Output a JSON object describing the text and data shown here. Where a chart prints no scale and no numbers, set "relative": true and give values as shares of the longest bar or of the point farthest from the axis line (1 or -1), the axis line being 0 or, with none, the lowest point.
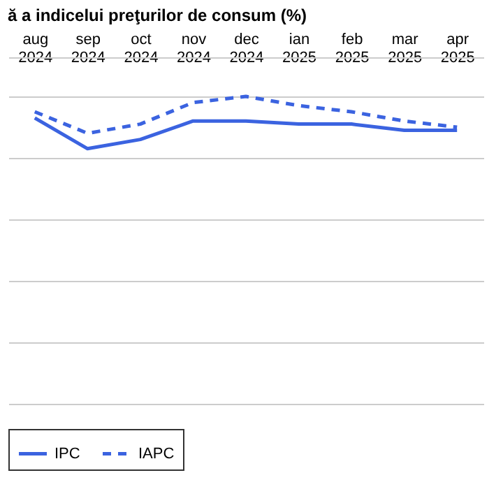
{
  "chart_data": {
    "type": "line",
    "title": "ă a indicelui preţurilor de consum (%)",
    "relative": true,
    "grid": "y",
    "legend": "bottom",
    "marker": "none",
    "categories": [
      "aug 2024",
      "sep 2024",
      "oct 2024",
      "nov 2024",
      "dec 2024",
      "ian 2025",
      "feb 2025",
      "mar 2025",
      "apr 2025"
    ],
    "series": [
      {
        "name": "IPC",
        "color": "#3b63e0",
        "line_style": "solid",
        "values": [
          0.93,
          0.83,
          0.86,
          0.92,
          0.92,
          0.91,
          0.91,
          0.89,
          0.89
        ]
      },
      {
        "name": "IAPC",
        "color": "#3b63e0",
        "line_style": "dashed",
        "values": [
          0.95,
          0.88,
          0.91,
          0.98,
          1.0,
          0.97,
          0.95,
          0.92,
          0.9
        ]
      }
    ]
  }
}
